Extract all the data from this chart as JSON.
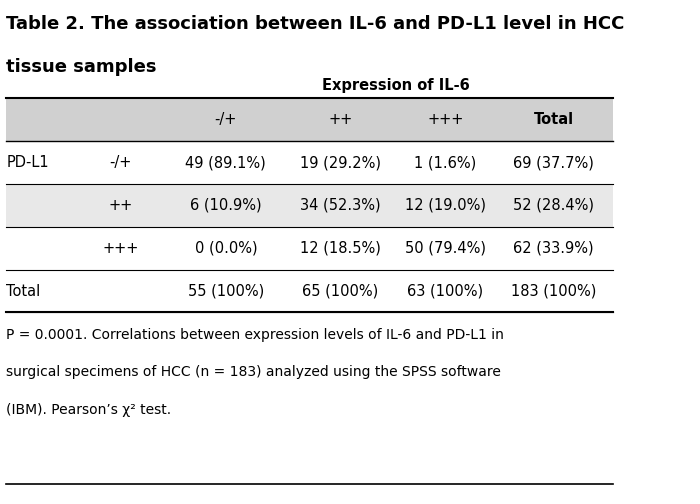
{
  "title_line1": "Table 2. The association between IL-6 and PD-L1 level in HCC",
  "title_line2": "tissue samples",
  "col_header_label": "Expression of IL-6",
  "col_headers": [
    "-/+",
    "++",
    "+++",
    "Total"
  ],
  "row_group_label": "PD-L1",
  "row_labels": [
    "-/+",
    "++",
    "+++"
  ],
  "total_label": "Total",
  "data": [
    [
      "49 (89.1%)",
      "19 (29.2%)",
      "1 (1.6%)",
      "69 (37.7%)"
    ],
    [
      "6 (10.9%)",
      "34 (52.3%)",
      "12 (19.0%)",
      "52 (28.4%)"
    ],
    [
      "0 (0.0%)",
      "12 (18.5%)",
      "50 (79.4%)",
      "62 (33.9%)"
    ],
    [
      "55 (100%)",
      "65 (100%)",
      "63 (100%)",
      "183 (100%)"
    ]
  ],
  "footnote": "P = 0.0001. Correlations between expression levels of IL-6 and PD-L1 in\nsurgical specimens of HCC (n = 183) analyzed using the SPSS software\n(IBM). Pearson’s χ² test.",
  "shaded_rows": [
    1
  ],
  "bg_color": "#ffffff",
  "header_bg": "#d0d0d0",
  "shaded_bg": "#e8e8e8",
  "line_color": "#000000",
  "title_fontsize": 13,
  "header_fontsize": 10.5,
  "cell_fontsize": 10.5,
  "footnote_fontsize": 10
}
